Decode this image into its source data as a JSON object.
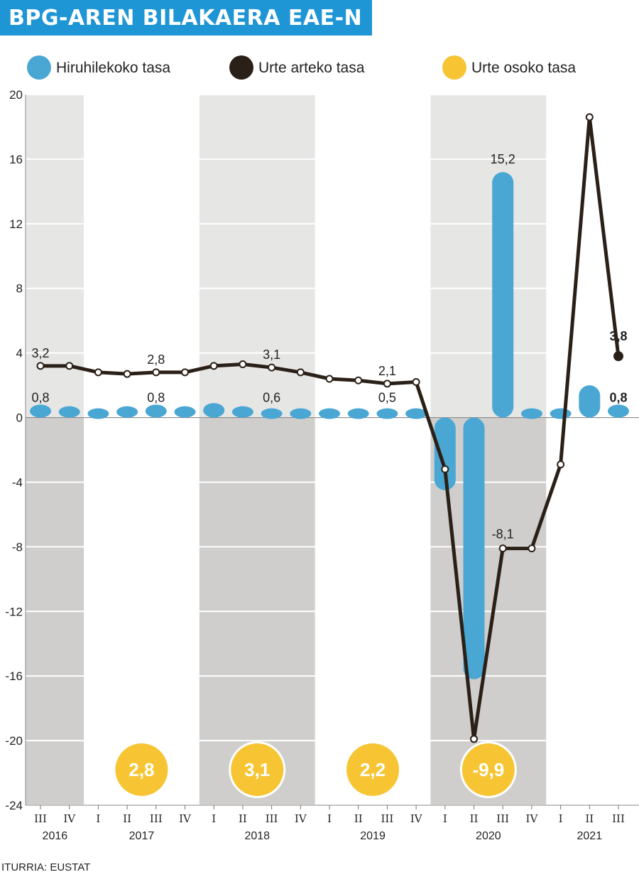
{
  "title": "BPG-AREN BILAKAERA EAE-N",
  "source": "ITURRIA: EUSTAT",
  "colors": {
    "quarterly": "#4aa7d3",
    "yearly_line": "#2b2017",
    "annual_bubble": "#f7c534",
    "band_light": "#e6e6e5",
    "band_dark": "#cfcecd",
    "title_bg": "#1e95d4"
  },
  "legend": [
    {
      "label": "Hiruhilekoko tasa",
      "color": "#4aa7d3"
    },
    {
      "label": "Urte arteko tasa",
      "color": "#2b2017"
    },
    {
      "label": "Urte osoko tasa",
      "color": "#f7c534"
    }
  ],
  "chart_data": {
    "type": "bar",
    "ylim": [
      -24,
      20
    ],
    "yticks": [
      "20",
      "16",
      "12",
      "8",
      "4",
      "0",
      "-4",
      "-8",
      "-12",
      "-16",
      "-20",
      "-24"
    ],
    "categories": [
      "III",
      "IV",
      "I",
      "II",
      "III",
      "IV",
      "I",
      "II",
      "III",
      "IV",
      "I",
      "II",
      "III",
      "IV",
      "I",
      "II",
      "III",
      "IV",
      "I",
      "II",
      "III"
    ],
    "years": [
      "2016",
      "2017",
      "2018",
      "2019",
      "2020",
      "2021"
    ],
    "shaded_years": [
      "2016",
      "2018",
      "2020"
    ],
    "series": [
      {
        "name": "Hiruhilekoko tasa",
        "kind": "bar",
        "values": [
          0.8,
          0.7,
          0.6,
          0.7,
          0.8,
          0.7,
          0.9,
          0.7,
          0.6,
          0.6,
          0.6,
          0.5,
          0.5,
          0.5,
          -4.5,
          -16.2,
          15.2,
          0.6,
          0.1,
          2.0,
          0.8
        ]
      },
      {
        "name": "Urte arteko tasa",
        "kind": "line",
        "values": [
          3.2,
          3.2,
          2.8,
          2.7,
          2.8,
          2.8,
          3.2,
          3.3,
          3.1,
          2.8,
          2.4,
          2.3,
          2.1,
          2.2,
          -3.2,
          -19.9,
          -8.1,
          -8.1,
          -2.9,
          18.6,
          3.8
        ]
      },
      {
        "name": "Urte osoko tasa",
        "kind": "bubble",
        "items": [
          {
            "year": "2017",
            "value": "2,8",
            "ring": false
          },
          {
            "year": "2018",
            "value": "3,1",
            "ring": true
          },
          {
            "year": "2019",
            "value": "2,2",
            "ring": false
          },
          {
            "year": "2020",
            "value": "-9,9",
            "ring": true
          }
        ]
      }
    ],
    "annotations": {
      "bars": [
        {
          "index": 0,
          "text": "0,8",
          "bold": false
        },
        {
          "index": 4,
          "text": "0,8",
          "bold": false
        },
        {
          "index": 8,
          "text": "0,6",
          "bold": false
        },
        {
          "index": 12,
          "text": "0,5",
          "bold": false
        },
        {
          "index": 16,
          "text": "15,2",
          "bold": false
        },
        {
          "index": 20,
          "text": "0,8",
          "bold": true
        }
      ],
      "line": [
        {
          "index": 0,
          "text": "3,2",
          "bold": false
        },
        {
          "index": 4,
          "text": "2,8",
          "bold": false
        },
        {
          "index": 8,
          "text": "3,1",
          "bold": false
        },
        {
          "index": 12,
          "text": "2,1",
          "bold": false
        },
        {
          "index": 16,
          "text": "-8,1",
          "bold": false
        },
        {
          "index": 20,
          "text": "3,8",
          "bold": true
        }
      ]
    }
  }
}
